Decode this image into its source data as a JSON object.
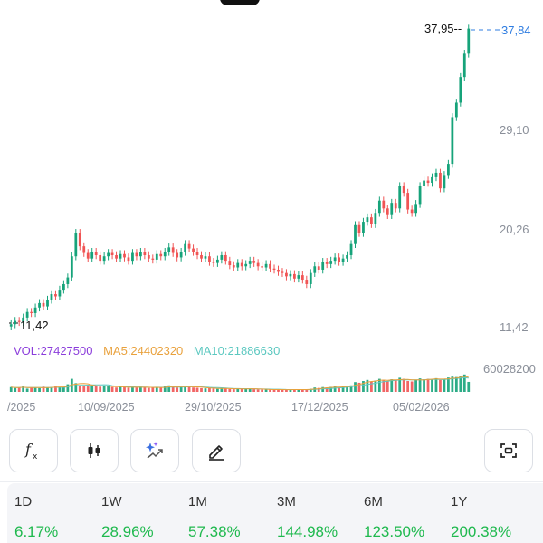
{
  "chart_data": {
    "type": "candlestick",
    "series": [
      {
        "name": "Price",
        "values": [
          11.4,
          11.7,
          11.6,
          12.0,
          12.5,
          12.4,
          12.9,
          13.3,
          13.0,
          13.6,
          14.1,
          13.9,
          14.5,
          15.0,
          15.6,
          17.5,
          19.6,
          18.4,
          17.8,
          17.3,
          17.9,
          17.6,
          17.1,
          17.5,
          17.8,
          17.6,
          17.3,
          17.7,
          17.4,
          17.1,
          17.8,
          17.5,
          17.9,
          17.6,
          17.3,
          17.2,
          17.7,
          17.5,
          17.9,
          18.3,
          17.8,
          17.4,
          17.9,
          18.6,
          18.2,
          17.9,
          17.6,
          17.3,
          17.5,
          17.0,
          16.9,
          17.2,
          17.6,
          17.1,
          16.7,
          16.5,
          16.9,
          16.6,
          16.8,
          17.1,
          16.9,
          16.6,
          16.5,
          16.8,
          16.4,
          16.3,
          16.1,
          16.0,
          15.7,
          15.9,
          15.5,
          15.8,
          15.4,
          15.0,
          16.0,
          16.6,
          16.3,
          17.0,
          16.8,
          17.1,
          17.4,
          17.0,
          17.3,
          17.6,
          18.6,
          20.3,
          19.6,
          20.6,
          21.0,
          20.4,
          21.4,
          22.5,
          21.8,
          21.2,
          22.3,
          21.8,
          23.8,
          23.2,
          21.7,
          21.4,
          22.2,
          23.8,
          24.3,
          24.1,
          24.6,
          25.0,
          23.6,
          24.8,
          25.8,
          30.0,
          31.3,
          33.6,
          35.7,
          37.95
        ]
      },
      {
        "name": "VOL",
        "values": [
          0.22,
          0.18,
          0.2,
          0.25,
          0.15,
          0.21,
          0.19,
          0.17,
          0.24,
          0.2,
          0.22,
          0.28,
          0.19,
          0.23,
          0.35,
          0.6,
          0.4,
          0.31,
          0.28,
          0.27,
          0.3,
          0.26,
          0.24,
          0.28,
          0.25,
          0.22,
          0.2,
          0.24,
          0.21,
          0.19,
          0.23,
          0.2,
          0.24,
          0.21,
          0.18,
          0.2,
          0.22,
          0.19,
          0.25,
          0.3,
          0.22,
          0.2,
          0.24,
          0.27,
          0.25,
          0.2,
          0.19,
          0.17,
          0.16,
          0.18,
          0.15,
          0.14,
          0.17,
          0.15,
          0.13,
          0.12,
          0.14,
          0.13,
          0.15,
          0.16,
          0.12,
          0.11,
          0.1,
          0.12,
          0.1,
          0.09,
          0.11,
          0.1,
          0.09,
          0.1,
          0.12,
          0.11,
          0.1,
          0.09,
          0.14,
          0.2,
          0.18,
          0.22,
          0.2,
          0.23,
          0.25,
          0.21,
          0.26,
          0.28,
          0.3,
          0.45,
          0.42,
          0.5,
          0.55,
          0.48,
          0.52,
          0.6,
          0.55,
          0.5,
          0.58,
          0.53,
          0.65,
          0.6,
          0.5,
          0.48,
          0.55,
          0.62,
          0.58,
          0.6,
          0.57,
          0.63,
          0.55,
          0.6,
          0.66,
          0.7,
          0.68,
          0.72,
          0.8,
          0.46
        ]
      }
    ],
    "yticks": [
      "37,84",
      "29,10",
      "20,26",
      "11,42"
    ],
    "ylim": [
      11.42,
      37.84
    ],
    "xticks": [
      "/2025",
      "10/09/2025",
      "29/10/2025",
      "17/12/2025",
      "05/02/2026"
    ],
    "high_label": "37,95",
    "low_label": "11,42",
    "last_price": "37,84",
    "vol_max_label": "60028200",
    "indicators": {
      "vol": "VOL:27427500",
      "ma5": "MA5:24402320",
      "ma10": "MA10:21886630"
    },
    "colors": {
      "up": "#16a37a",
      "down": "#f05454",
      "last": "#2f7de1",
      "vol_color": "#8b3ddb",
      "ma5_color": "#e9a13c",
      "ma10_color": "#5cc8c0"
    }
  },
  "toolbar": [
    {
      "name": "indicator-button",
      "icon": "function-fx-icon"
    },
    {
      "name": "candle-type-button",
      "icon": "candlestick-icon"
    },
    {
      "name": "ai-analysis-button",
      "icon": "sparkle-chart-icon"
    },
    {
      "name": "draw-button",
      "icon": "pencil-icon"
    },
    {
      "name": "fullscreen-button",
      "icon": "expand-icon"
    }
  ],
  "performance": [
    {
      "label": "1D",
      "value": "6.17%"
    },
    {
      "label": "1W",
      "value": "28.96%"
    },
    {
      "label": "1M",
      "value": "57.38%"
    },
    {
      "label": "3M",
      "value": "144.98%"
    },
    {
      "label": "6M",
      "value": "123.50%"
    },
    {
      "label": "1Y",
      "value": "200.38%"
    }
  ]
}
